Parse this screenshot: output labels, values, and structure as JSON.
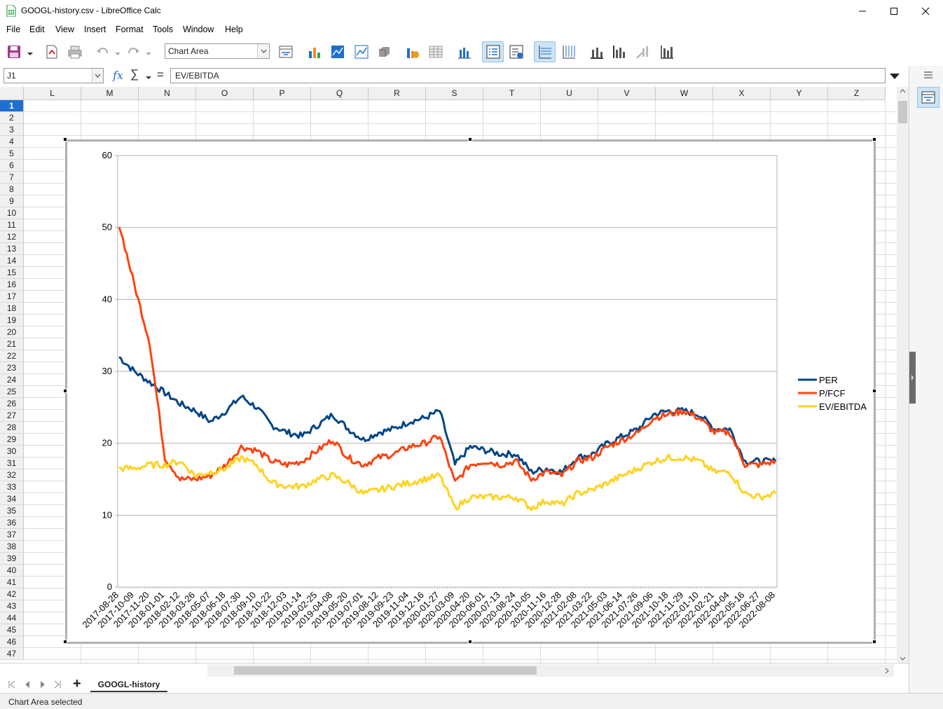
{
  "window": {
    "title": "GOOGL-history.csv - LibreOffice Calc",
    "controls": {
      "minimize": "minimize-icon",
      "maximize": "maximize-icon",
      "close": "close-icon"
    }
  },
  "menu": [
    "File",
    "Edit",
    "View",
    "Insert",
    "Format",
    "Tools",
    "Window",
    "Help"
  ],
  "toolbar": {
    "element_select": "Chart Area"
  },
  "formula_bar": {
    "name_box": "J1",
    "formula": "EV/EBITDA"
  },
  "columns": [
    "L",
    "M",
    "N",
    "O",
    "P",
    "Q",
    "R",
    "S",
    "T",
    "U",
    "V",
    "W",
    "X",
    "Y",
    "Z"
  ],
  "rows": [
    "1",
    "2",
    "3",
    "4",
    "5",
    "6",
    "7",
    "8",
    "9",
    "10",
    "11",
    "12",
    "13",
    "14",
    "15",
    "16",
    "17",
    "18",
    "19",
    "20",
    "21",
    "22",
    "23",
    "24",
    "25",
    "26",
    "27",
    "28",
    "29",
    "30",
    "31",
    "32",
    "33",
    "34",
    "35",
    "36",
    "37",
    "38",
    "39",
    "40",
    "41",
    "42",
    "43",
    "44",
    "45",
    "46",
    "47"
  ],
  "sheet_tab": "GOOGL-history",
  "status": "Chart Area selected",
  "chart_data": {
    "type": "line",
    "ylim": [
      0,
      60
    ],
    "yticks": [
      "0",
      "10",
      "20",
      "30",
      "40",
      "50",
      "60"
    ],
    "categories": [
      "2017-08-28",
      "2017-10-09",
      "2017-11-20",
      "2018-01-01",
      "2018-02-12",
      "2018-03-26",
      "2018-05-07",
      "2018-06-18",
      "2018-07-30",
      "2018-09-10",
      "2018-10-22",
      "2018-12-03",
      "2019-01-14",
      "2019-02-25",
      "2019-04-08",
      "2019-05-20",
      "2019-07-01",
      "2019-08-12",
      "2019-09-23",
      "2019-11-04",
      "2019-12-16",
      "2020-01-27",
      "2020-03-09",
      "2020-04-20",
      "2020-06-01",
      "2020-07-13",
      "2020-08-24",
      "2020-10-05",
      "2020-11-16",
      "2020-12-28",
      "2021-02-08",
      "2021-03-22",
      "2021-05-03",
      "2021-06-14",
      "2021-07-26",
      "2021-09-06",
      "2021-10-18",
      "2021-11-29",
      "2022-01-10",
      "2022-02-21",
      "2022-04-04",
      "2022-05-16",
      "2022-06-27",
      "2022-08-08"
    ],
    "legend_position": "right",
    "grid": true,
    "series": [
      {
        "name": "PER",
        "color": "#004586",
        "values": [
          32.0,
          30.0,
          28.5,
          27.0,
          25.5,
          24.5,
          23.0,
          24.5,
          26.5,
          25.0,
          22.5,
          21.5,
          21.0,
          22.5,
          24.0,
          22.0,
          20.5,
          21.5,
          22.0,
          23.0,
          23.5,
          24.5,
          17.0,
          19.5,
          19.0,
          18.5,
          18.5,
          16.0,
          16.5,
          16.0,
          18.0,
          18.5,
          20.0,
          21.0,
          22.0,
          24.0,
          24.5,
          24.5,
          24.0,
          22.0,
          22.0,
          17.5,
          17.5,
          17.5
        ]
      },
      {
        "name": "P/FCF",
        "color": "#ff420e",
        "values": [
          50.5,
          42.0,
          34.0,
          18.0,
          15.0,
          15.0,
          15.5,
          17.0,
          19.5,
          19.0,
          17.5,
          17.0,
          17.5,
          19.0,
          20.5,
          18.0,
          17.0,
          18.0,
          18.5,
          19.5,
          20.0,
          21.0,
          14.5,
          17.0,
          17.5,
          17.0,
          17.5,
          15.0,
          16.0,
          15.5,
          17.5,
          18.0,
          19.5,
          20.5,
          21.5,
          23.5,
          24.0,
          24.5,
          23.5,
          21.5,
          21.5,
          17.0,
          17.0,
          17.5
        ]
      },
      {
        "name": "EV/EBITDA",
        "color": "#ffd320",
        "values": [
          16.5,
          16.5,
          17.0,
          17.0,
          17.5,
          15.5,
          16.0,
          16.5,
          18.0,
          17.0,
          14.5,
          14.0,
          14.0,
          15.0,
          15.5,
          14.5,
          13.0,
          13.5,
          14.0,
          14.5,
          15.0,
          15.5,
          11.0,
          12.5,
          12.5,
          12.5,
          12.5,
          11.0,
          12.0,
          11.5,
          13.0,
          13.5,
          14.5,
          15.5,
          16.5,
          17.5,
          18.0,
          18.0,
          17.5,
          16.0,
          16.0,
          13.0,
          12.5,
          13.0
        ]
      }
    ]
  }
}
